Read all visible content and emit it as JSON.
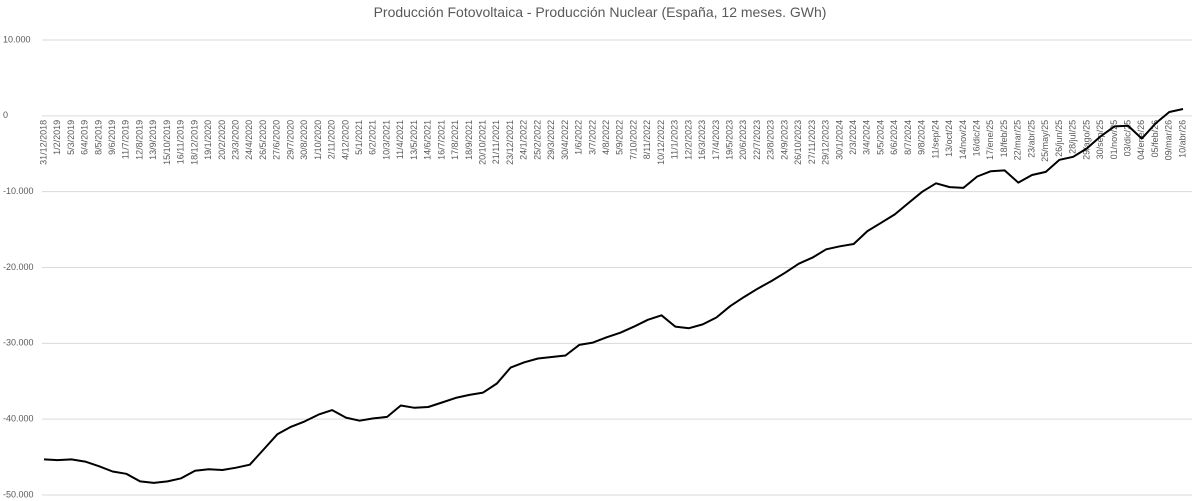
{
  "chart_data": {
    "type": "line",
    "title": "Producción Fotovoltaica - Producción Nuclear (España, 12 meses. GWh)",
    "categories": [
      "31/12/2018",
      "1/2/2019",
      "5/3/2019",
      "6/4/2019",
      "8/5/2019",
      "9/6/2019",
      "11/7/2019",
      "12/8/2019",
      "13/9/2019",
      "15/10/2019",
      "16/11/2019",
      "18/12/2019",
      "19/1/2020",
      "20/2/2020",
      "23/3/2020",
      "24/4/2020",
      "26/5/2020",
      "27/6/2020",
      "29/7/2020",
      "30/8/2020",
      "1/10/2020",
      "2/11/2020",
      "4/12/2020",
      "5/1/2021",
      "6/2/2021",
      "10/3/2021",
      "11/4/2021",
      "13/5/2021",
      "14/6/2021",
      "16/7/2021",
      "17/8/2021",
      "18/9/2021",
      "20/10/2021",
      "21/11/2021",
      "23/12/2021",
      "24/1/2022",
      "25/2/2022",
      "29/3/2022",
      "30/4/2022",
      "1/6/2022",
      "3/7/2022",
      "4/8/2022",
      "5/9/2022",
      "7/10/2022",
      "8/11/2022",
      "10/12/2022",
      "11/1/2023",
      "12/2/2023",
      "16/3/2023",
      "17/4/2023",
      "19/5/2023",
      "20/6/2023",
      "22/7/2023",
      "23/8/2023",
      "24/9/2023",
      "26/10/2023",
      "27/11/2023",
      "29/12/2023",
      "30/1/2024",
      "2/3/2024",
      "3/4/2024",
      "5/5/2024",
      "6/6/2024",
      "8/7/2024",
      "9/8/2024",
      "11/sep/24",
      "13/oct/24",
      "14/nov/24",
      "16/dic/24",
      "17/ene/25",
      "18/feb/25",
      "22/mar/25",
      "23/abr/25",
      "25/may/25",
      "26/jun/25",
      "28/jul/25",
      "29/ago/25",
      "30/sep/25",
      "01/nov/25",
      "03/dic/25",
      "04/ene/26",
      "05/feb/26",
      "09/mar/26",
      "10/abr/26"
    ],
    "values": [
      -45300,
      -45400,
      -45300,
      -45600,
      -46200,
      -46900,
      -47200,
      -48200,
      -48400,
      -48200,
      -47800,
      -46800,
      -46600,
      -46700,
      -46400,
      -46000,
      -44000,
      -42000,
      -41000,
      -40300,
      -39400,
      -38800,
      -39800,
      -40200,
      -39900,
      -39700,
      -38200,
      -38500,
      -38400,
      -37800,
      -37200,
      -36800,
      -36500,
      -35300,
      -33200,
      -32500,
      -32000,
      -31800,
      -31600,
      -30200,
      -29900,
      -29200,
      -28600,
      -27800,
      -26900,
      -26300,
      -27800,
      -28000,
      -27500,
      -26600,
      -25100,
      -23900,
      -22800,
      -21800,
      -20700,
      -19500,
      -18700,
      -17600,
      -17200,
      -16900,
      -15200,
      -14100,
      -13000,
      -11500,
      -10000,
      -8900,
      -9400,
      -9500,
      -8000,
      -7300,
      -7200,
      -8800,
      -7800,
      -7400,
      -5800,
      -5400,
      -4300,
      -2700,
      -1400,
      -1300,
      -3000,
      -1000,
      500,
      900
    ],
    "color": "#000000",
    "ylim": [
      -50000,
      10000
    ],
    "yticks": [
      {
        "value": 10000,
        "label": "10.000"
      },
      0,
      {
        "value": -10000,
        "label": "-10.000"
      },
      {
        "value": -20000,
        "label": "-20.000"
      },
      {
        "value": -30000,
        "label": "-30.000"
      },
      {
        "value": -40000,
        "label": "-40.000"
      },
      {
        "value": -50000,
        "label": "-50.000"
      }
    ],
    "grid": true
  }
}
